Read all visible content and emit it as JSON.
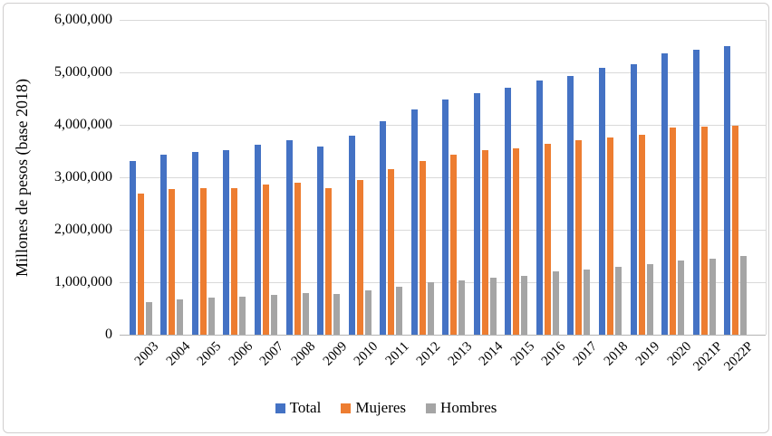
{
  "chart_data": {
    "type": "bar",
    "title": "",
    "xlabel": "",
    "ylabel": "Millones de pesos (base 2018)",
    "ylim": [
      0,
      6000000
    ],
    "ytick_step": 1000000,
    "ytick_labels": [
      "0",
      "1,000,000",
      "2,000,000",
      "3,000,000",
      "4,000,000",
      "5,000,000",
      "6,000,000"
    ],
    "grid": "horizontal",
    "legend_position": "bottom",
    "categories": [
      "2003",
      "2004",
      "2005",
      "2006",
      "2007",
      "2008",
      "2009",
      "2010",
      "2011",
      "2012",
      "2013",
      "2014",
      "2015",
      "2016",
      "2017",
      "2018",
      "2019",
      "2020",
      "2021P",
      "2022P"
    ],
    "series": [
      {
        "name": "Total",
        "color": "#4472C4",
        "values": [
          3310000,
          3430000,
          3490000,
          3520000,
          3630000,
          3700000,
          3580000,
          3790000,
          4070000,
          4300000,
          4480000,
          4610000,
          4700000,
          4850000,
          4940000,
          5080000,
          5160000,
          5370000,
          5430000,
          5500000
        ]
      },
      {
        "name": "Mujeres",
        "color": "#ED7D31",
        "values": [
          2690000,
          2770000,
          2800000,
          2800000,
          2860000,
          2900000,
          2790000,
          2950000,
          3150000,
          3310000,
          3430000,
          3510000,
          3550000,
          3640000,
          3700000,
          3760000,
          3810000,
          3950000,
          3970000,
          3990000
        ]
      },
      {
        "name": "Hombres",
        "color": "#A5A5A5",
        "values": [
          630000,
          670000,
          700000,
          720000,
          760000,
          790000,
          780000,
          850000,
          920000,
          1000000,
          1040000,
          1090000,
          1130000,
          1200000,
          1250000,
          1300000,
          1340000,
          1410000,
          1450000,
          1500000
        ]
      }
    ],
    "colors": {
      "gridline": "#D9D9D9",
      "axis_line": "#B3B3B3",
      "frame_border": "#D0CECE",
      "text": "#000000"
    }
  }
}
